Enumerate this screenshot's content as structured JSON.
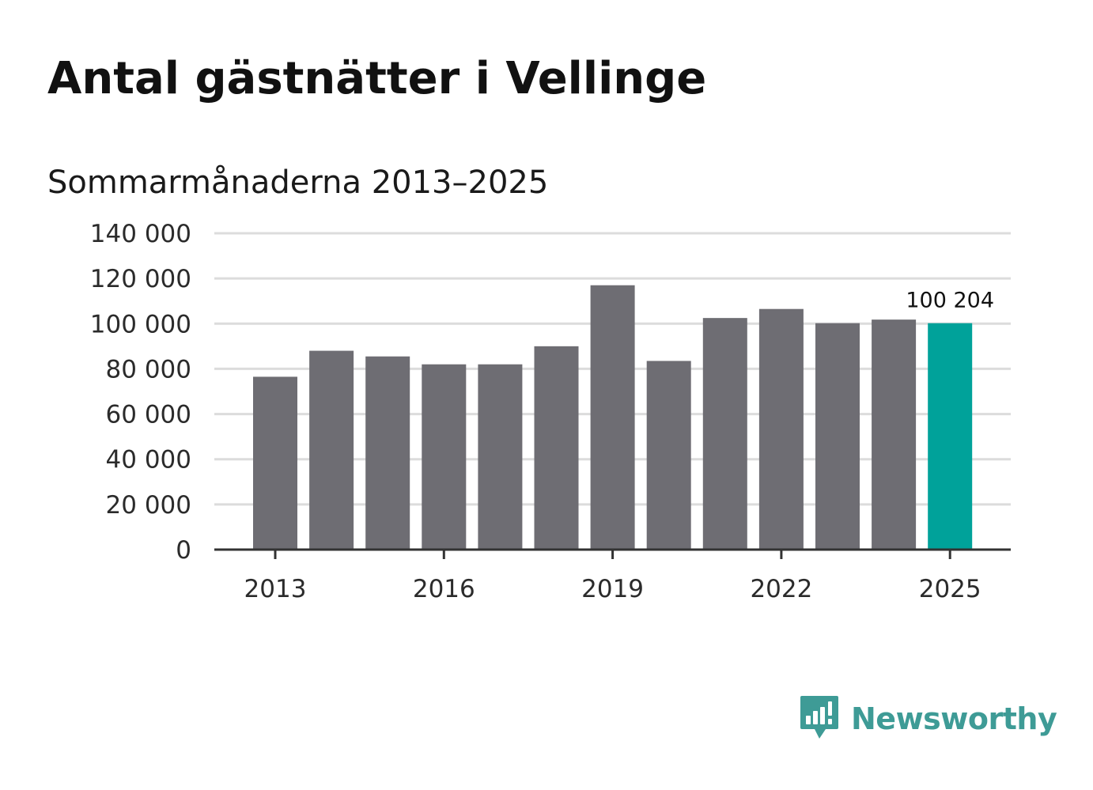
{
  "title": "Antal gästnätter i Vellinge",
  "subtitle": "Sommarmånaderna 2013–2025",
  "brand": {
    "name": "Newsworthy",
    "icon": "newsworthy-logo-icon",
    "color": "#3e9b96"
  },
  "chart_data": {
    "type": "bar",
    "title": "Antal gästnätter i Vellinge",
    "subtitle": "Sommarmånaderna 2013–2025",
    "xlabel": "",
    "ylabel": "",
    "categories": [
      "2013",
      "2014",
      "2015",
      "2016",
      "2017",
      "2018",
      "2019",
      "2020",
      "2021",
      "2022",
      "2023",
      "2024",
      "2025"
    ],
    "values": [
      76500,
      88000,
      85500,
      82000,
      82000,
      90000,
      117000,
      83500,
      102500,
      106500,
      100200,
      101800,
      100204
    ],
    "x_tick_labels": [
      "2013",
      "2016",
      "2019",
      "2022",
      "2025"
    ],
    "y_tick_labels": [
      "0",
      "20 000",
      "40 000",
      "60 000",
      "80 000",
      "100 000",
      "120 000",
      "140 000"
    ],
    "y_ticks": [
      0,
      20000,
      40000,
      60000,
      80000,
      100000,
      120000,
      140000
    ],
    "ylim": [
      0,
      140000
    ],
    "grid": true,
    "highlight": {
      "category": "2025",
      "label": "100 204"
    },
    "colors": {
      "bar": "#6e6d73",
      "highlight": "#00a29a",
      "grid": "#dcdcdc",
      "axis": "#333333"
    }
  }
}
